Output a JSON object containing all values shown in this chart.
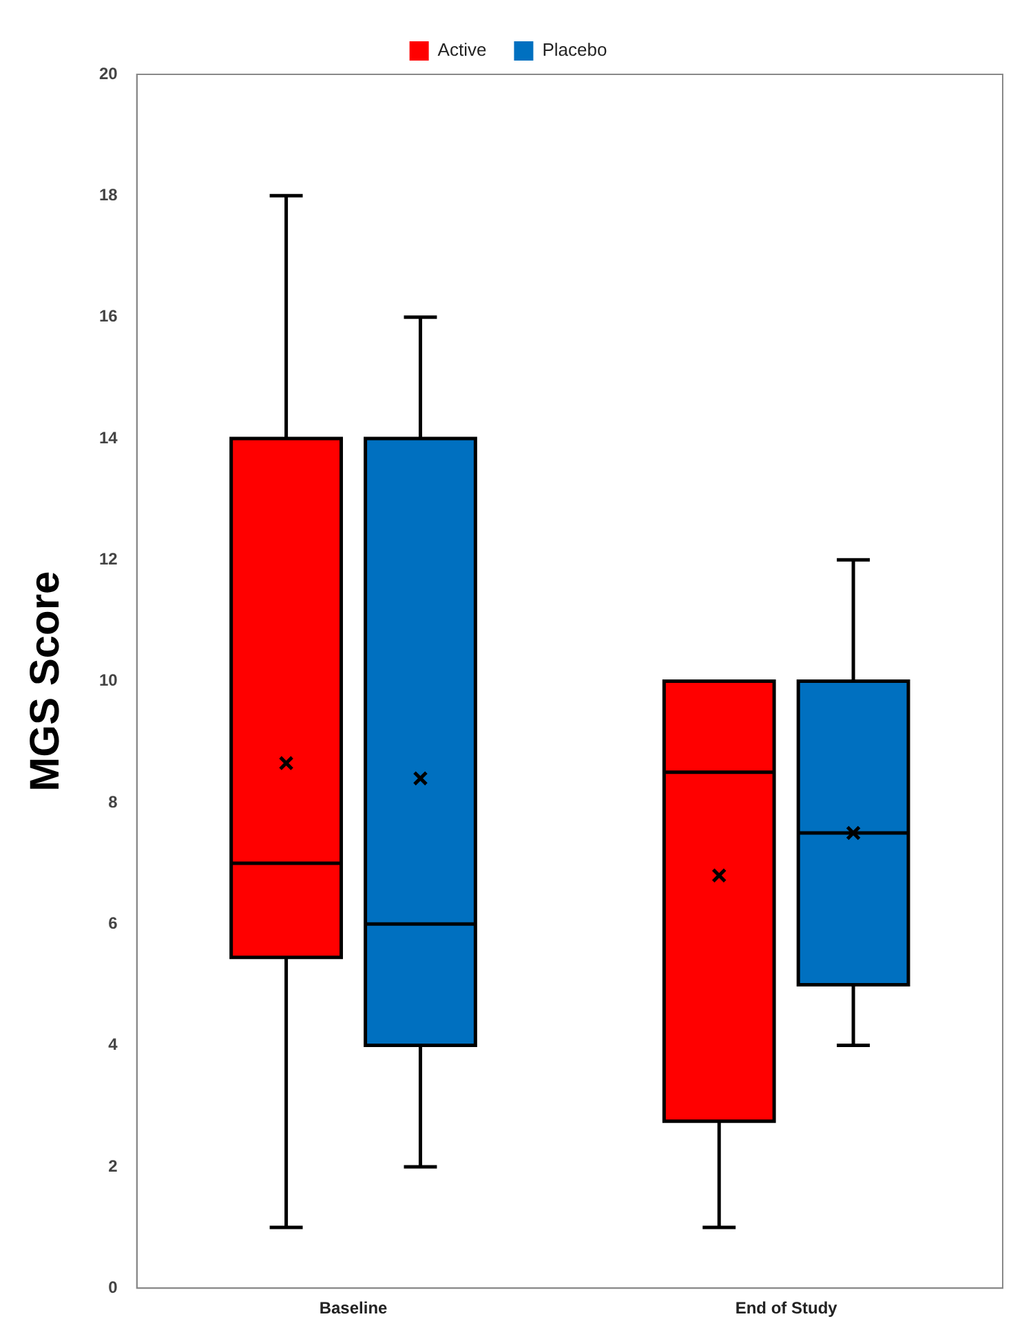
{
  "chart_data": {
    "type": "box",
    "ylabel": "MGS Score",
    "categories": [
      "Baseline",
      "End of Study"
    ],
    "series": [
      {
        "name": "Active",
        "color": "#ff0000",
        "boxes": [
          {
            "low": 1,
            "q1": 5.45,
            "median": 7,
            "q3": 14,
            "high": 18,
            "mean": 8.65
          },
          {
            "low": 1,
            "q1": 2.75,
            "median": 8.5,
            "q3": 10,
            "high": 10,
            "mean": 6.8
          }
        ]
      },
      {
        "name": "Placebo",
        "color": "#0070c0",
        "boxes": [
          {
            "low": 2,
            "q1": 4,
            "median": 6,
            "q3": 14,
            "high": 16,
            "mean": 8.4
          },
          {
            "low": 4,
            "q1": 5,
            "median": 7.5,
            "q3": 10,
            "high": 12,
            "mean": 7.5
          }
        ]
      }
    ],
    "ylim": [
      0,
      20
    ],
    "yticks": [
      0,
      2,
      4,
      6,
      8,
      10,
      12,
      14,
      16,
      18,
      20
    ],
    "legend": "top",
    "grid": false,
    "marker": "cross"
  }
}
